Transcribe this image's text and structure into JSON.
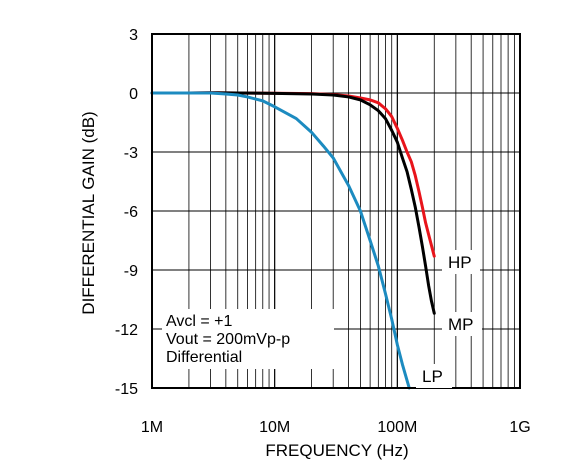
{
  "chart_data": {
    "type": "line",
    "xlabel": "FREQUENCY (Hz)",
    "ylabel": "DIFFERENTIAL GAIN (dB)",
    "x_scale": "log",
    "xlim": [
      1000000,
      1000000000
    ],
    "ylim": [
      -15,
      3
    ],
    "x_ticks": [
      {
        "value": 1000000,
        "label": "1M"
      },
      {
        "value": 10000000,
        "label": "10M"
      },
      {
        "value": 100000000,
        "label": "100M"
      },
      {
        "value": 1000000000,
        "label": "1G"
      }
    ],
    "y_ticks": [
      {
        "value": 3,
        "label": "3"
      },
      {
        "value": 0,
        "label": "0"
      },
      {
        "value": -3,
        "label": "-3"
      },
      {
        "value": -6,
        "label": "-6"
      },
      {
        "value": -9,
        "label": "-9"
      },
      {
        "value": -12,
        "label": "-12"
      },
      {
        "value": -15,
        "label": "-15"
      }
    ],
    "grid": true,
    "annotation_lines": [
      "Avcl = +1",
      "Vout = 200mVp-p",
      "Differential"
    ],
    "colors": {
      "HP": "#e8141b",
      "MP": "#000000",
      "LP": "#1c8bc0"
    },
    "series": [
      {
        "name": "HP",
        "x": [
          1000000,
          2000000,
          3000000,
          5000000,
          10000000,
          20000000,
          30000000,
          40000000,
          50000000,
          60000000,
          70000000,
          80000000,
          90000000,
          100000000,
          110000000,
          120000000,
          130000000,
          140000000,
          150000000,
          160000000,
          170000000,
          180000000,
          200000000
        ],
        "y": [
          0,
          0,
          0.01,
          0,
          -0.01,
          -0.03,
          -0.08,
          -0.15,
          -0.25,
          -0.35,
          -0.5,
          -0.8,
          -1.2,
          -1.8,
          -2.4,
          -3.0,
          -3.5,
          -4.2,
          -5.0,
          -5.8,
          -6.6,
          -7.2,
          -8.3
        ]
      },
      {
        "name": "MP",
        "x": [
          1000000,
          2000000,
          3000000,
          5000000,
          10000000,
          20000000,
          30000000,
          40000000,
          50000000,
          60000000,
          70000000,
          80000000,
          90000000,
          100000000,
          110000000,
          120000000,
          130000000,
          140000000,
          150000000,
          160000000,
          170000000,
          180000000,
          190000000,
          200000000
        ],
        "y": [
          0,
          0,
          0.01,
          0,
          -0.02,
          -0.05,
          -0.1,
          -0.2,
          -0.35,
          -0.6,
          -0.9,
          -1.3,
          -1.9,
          -2.5,
          -3.3,
          -4.0,
          -4.9,
          -5.8,
          -6.8,
          -7.8,
          -8.8,
          -9.8,
          -10.6,
          -11.2
        ]
      },
      {
        "name": "LP",
        "x": [
          1000000,
          1500000,
          2000000,
          3000000,
          4000000,
          5000000,
          6000000,
          8000000,
          10000000,
          15000000,
          20000000,
          25000000,
          30000000,
          40000000,
          50000000,
          60000000,
          70000000,
          80000000,
          90000000,
          100000000,
          110000000,
          125000000
        ],
        "y": [
          0,
          0,
          0,
          0,
          -0.05,
          -0.1,
          -0.2,
          -0.4,
          -0.7,
          -1.3,
          -2.0,
          -2.7,
          -3.3,
          -4.7,
          -6.0,
          -7.5,
          -8.8,
          -10.2,
          -11.5,
          -12.8,
          -13.8,
          -15.0
        ]
      }
    ]
  }
}
